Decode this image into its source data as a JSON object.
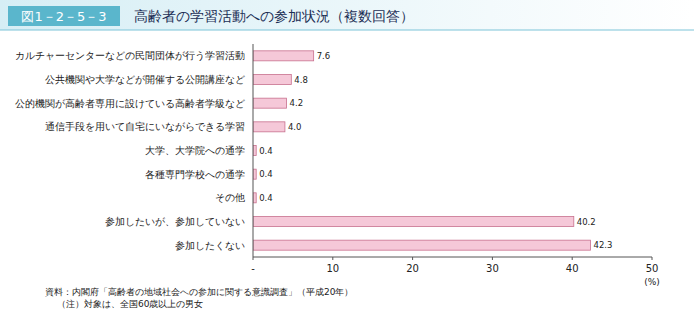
{
  "chart_data": {
    "type": "bar",
    "orientation": "horizontal",
    "figure_number": "図1－2－5－3",
    "title": "高齢者の学習活動への参加状況（複数回答）",
    "categories": [
      "カルチャーセンターなどの民間団体が行う学習活動",
      "公共機関や大学などが開催する公開講座など",
      "公的機関が高齢者専用に設けている高齢者学級など",
      "通信手段を用いて自宅にいながらできる学習",
      "大学、大学院への通学",
      "各種専門学校への通学",
      "その他",
      "参加したいが、参加していない",
      "参加したくない"
    ],
    "values": [
      7.6,
      4.8,
      4.2,
      4.0,
      0.4,
      0.4,
      0.4,
      40.2,
      42.3
    ],
    "value_labels": [
      "7.6",
      "4.8",
      "4.2",
      "4.0",
      "0.4",
      "0.4",
      "0.4",
      "40.2",
      "42.3"
    ],
    "data_labels": true,
    "color": "#f5c8d8",
    "xlim": [
      0,
      50
    ],
    "xticks": [
      {
        "value": 0,
        "label": "-"
      },
      10,
      20,
      30,
      40,
      50
    ],
    "x_label": "(%)",
    "grid": false,
    "notes": [
      "資料：内閣府「高齢者の地域社会への参加に関する意識調査」（平成20年）",
      "（注）対象は、全国60歳以上の男女"
    ]
  }
}
